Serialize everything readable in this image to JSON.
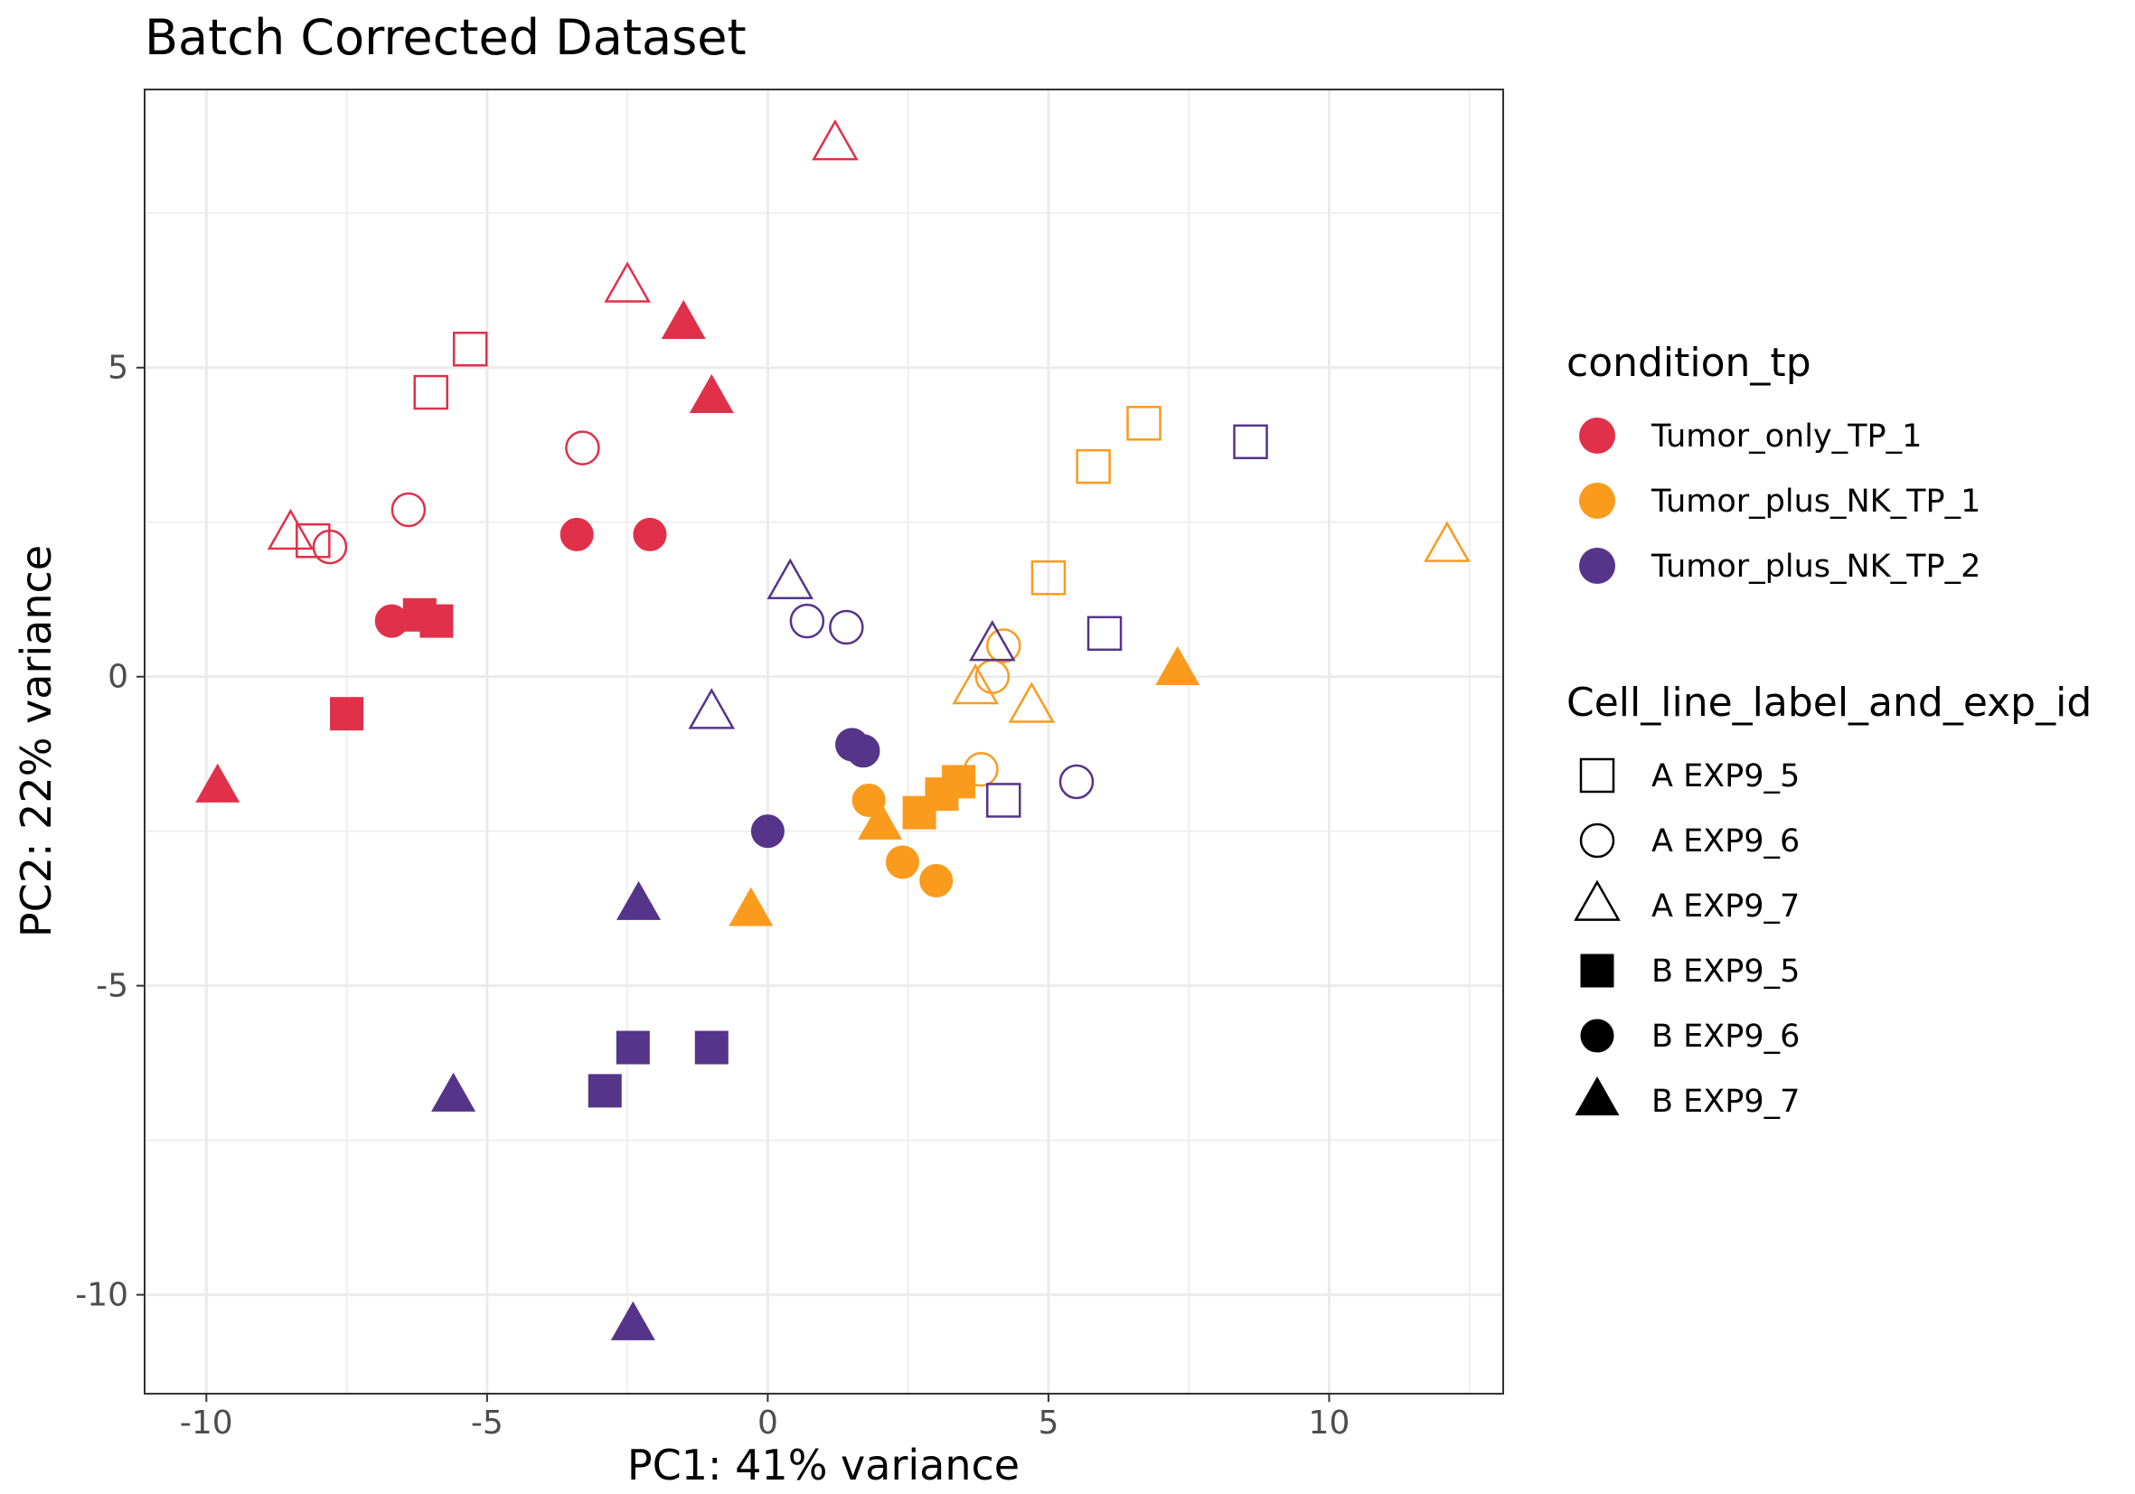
{
  "chart_data": {
    "type": "scatter",
    "title": "Batch Corrected Dataset",
    "xlabel": "PC1: 41% variance",
    "ylabel": "PC2: 22% variance",
    "xlim": [
      -11.1,
      13.1
    ],
    "ylim": [
      -11.6,
      9.5
    ],
    "xticks": [
      -10,
      -5,
      0,
      5,
      10
    ],
    "xtick_labels": [
      "-10",
      "-5",
      "0",
      "5",
      "10"
    ],
    "yticks": [
      -10,
      -5,
      0,
      5
    ],
    "ytick_labels": [
      "-10",
      "-5",
      "0",
      "5"
    ],
    "grid": true,
    "legend_placement": "right",
    "color_legend": {
      "title": "condition_tp",
      "entries": [
        {
          "key": "tumor_only",
          "label": "Tumor_only_TP_1",
          "color": "#E0304A"
        },
        {
          "key": "tumor_nk1",
          "label": "Tumor_plus_NK_TP_1",
          "color": "#FA9B1E"
        },
        {
          "key": "tumor_nk2",
          "label": "Tumor_plus_NK_TP_2",
          "color": "#55348A"
        }
      ]
    },
    "shape_legend": {
      "title": "Cell_line_label_and_exp_id",
      "entries": [
        {
          "key": "A5",
          "label": "A EXP9_5",
          "shape": "square",
          "filled": false
        },
        {
          "key": "A6",
          "label": "A EXP9_6",
          "shape": "circle",
          "filled": false
        },
        {
          "key": "A7",
          "label": "A EXP9_7",
          "shape": "triangle",
          "filled": false
        },
        {
          "key": "B5",
          "label": "B EXP9_5",
          "shape": "square",
          "filled": true
        },
        {
          "key": "B6",
          "label": "B EXP9_6",
          "shape": "circle",
          "filled": true
        },
        {
          "key": "B7",
          "label": "B EXP9_7",
          "shape": "triangle",
          "filled": true
        }
      ]
    },
    "points": [
      {
        "x": 1.2,
        "y": 8.6,
        "condition": "tumor_only",
        "group": "A7"
      },
      {
        "x": -2.5,
        "y": 6.3,
        "condition": "tumor_only",
        "group": "A7"
      },
      {
        "x": -8.5,
        "y": 2.3,
        "condition": "tumor_only",
        "group": "A7"
      },
      {
        "x": -5.3,
        "y": 5.3,
        "condition": "tumor_only",
        "group": "A5"
      },
      {
        "x": -6.0,
        "y": 4.6,
        "condition": "tumor_only",
        "group": "A5"
      },
      {
        "x": -8.1,
        "y": 2.2,
        "condition": "tumor_only",
        "group": "A5"
      },
      {
        "x": -3.3,
        "y": 3.7,
        "condition": "tumor_only",
        "group": "A6"
      },
      {
        "x": -6.4,
        "y": 2.7,
        "condition": "tumor_only",
        "group": "A6"
      },
      {
        "x": -7.8,
        "y": 2.1,
        "condition": "tumor_only",
        "group": "A6"
      },
      {
        "x": -1.5,
        "y": 5.7,
        "condition": "tumor_only",
        "group": "B7"
      },
      {
        "x": -1.0,
        "y": 4.5,
        "condition": "tumor_only",
        "group": "B7"
      },
      {
        "x": -9.8,
        "y": -1.8,
        "condition": "tumor_only",
        "group": "B7"
      },
      {
        "x": -3.4,
        "y": 2.3,
        "condition": "tumor_only",
        "group": "B6"
      },
      {
        "x": -2.1,
        "y": 2.3,
        "condition": "tumor_only",
        "group": "B6"
      },
      {
        "x": -6.7,
        "y": 0.9,
        "condition": "tumor_only",
        "group": "B6"
      },
      {
        "x": -6.2,
        "y": 1.0,
        "condition": "tumor_only",
        "group": "B5"
      },
      {
        "x": -5.9,
        "y": 0.9,
        "condition": "tumor_only",
        "group": "B5"
      },
      {
        "x": -7.5,
        "y": -0.6,
        "condition": "tumor_only",
        "group": "B5"
      },
      {
        "x": 6.7,
        "y": 4.1,
        "condition": "tumor_nk1",
        "group": "A5"
      },
      {
        "x": 5.8,
        "y": 3.4,
        "condition": "tumor_nk1",
        "group": "A5"
      },
      {
        "x": 5.0,
        "y": 1.6,
        "condition": "tumor_nk1",
        "group": "A5"
      },
      {
        "x": 12.1,
        "y": 2.1,
        "condition": "tumor_nk1",
        "group": "A7"
      },
      {
        "x": 3.7,
        "y": -0.2,
        "condition": "tumor_nk1",
        "group": "A7"
      },
      {
        "x": 4.7,
        "y": -0.5,
        "condition": "tumor_nk1",
        "group": "A7"
      },
      {
        "x": 4.2,
        "y": 0.5,
        "condition": "tumor_nk1",
        "group": "A6"
      },
      {
        "x": 4.0,
        "y": 0.0,
        "condition": "tumor_nk1",
        "group": "A6"
      },
      {
        "x": 3.8,
        "y": -1.5,
        "condition": "tumor_nk1",
        "group": "A6"
      },
      {
        "x": 7.3,
        "y": 0.1,
        "condition": "tumor_nk1",
        "group": "B7"
      },
      {
        "x": 2.0,
        "y": -2.4,
        "condition": "tumor_nk1",
        "group": "B7"
      },
      {
        "x": -0.3,
        "y": -3.8,
        "condition": "tumor_nk1",
        "group": "B7"
      },
      {
        "x": 2.7,
        "y": -2.2,
        "condition": "tumor_nk1",
        "group": "B5"
      },
      {
        "x": 3.1,
        "y": -1.9,
        "condition": "tumor_nk1",
        "group": "B5"
      },
      {
        "x": 3.4,
        "y": -1.7,
        "condition": "tumor_nk1",
        "group": "B5"
      },
      {
        "x": 1.8,
        "y": -2.0,
        "condition": "tumor_nk1",
        "group": "B6"
      },
      {
        "x": 2.4,
        "y": -3.0,
        "condition": "tumor_nk1",
        "group": "B6"
      },
      {
        "x": 3.0,
        "y": -3.3,
        "condition": "tumor_nk1",
        "group": "B6"
      },
      {
        "x": 8.6,
        "y": 3.8,
        "condition": "tumor_nk2",
        "group": "A5"
      },
      {
        "x": 6.0,
        "y": 0.7,
        "condition": "tumor_nk2",
        "group": "A5"
      },
      {
        "x": 4.2,
        "y": -2.0,
        "condition": "tumor_nk2",
        "group": "A5"
      },
      {
        "x": 0.4,
        "y": 1.5,
        "condition": "tumor_nk2",
        "group": "A7"
      },
      {
        "x": 4.0,
        "y": 0.5,
        "condition": "tumor_nk2",
        "group": "A7"
      },
      {
        "x": -1.0,
        "y": -0.6,
        "condition": "tumor_nk2",
        "group": "A7"
      },
      {
        "x": 0.7,
        "y": 0.9,
        "condition": "tumor_nk2",
        "group": "A6"
      },
      {
        "x": 1.4,
        "y": 0.8,
        "condition": "tumor_nk2",
        "group": "A6"
      },
      {
        "x": 5.5,
        "y": -1.7,
        "condition": "tumor_nk2",
        "group": "A6"
      },
      {
        "x": 1.5,
        "y": -1.1,
        "condition": "tumor_nk2",
        "group": "B6"
      },
      {
        "x": 1.7,
        "y": -1.2,
        "condition": "tumor_nk2",
        "group": "B6"
      },
      {
        "x": 0.0,
        "y": -2.5,
        "condition": "tumor_nk2",
        "group": "B6"
      },
      {
        "x": -2.3,
        "y": -3.7,
        "condition": "tumor_nk2",
        "group": "B7"
      },
      {
        "x": -5.6,
        "y": -6.8,
        "condition": "tumor_nk2",
        "group": "B7"
      },
      {
        "x": -2.4,
        "y": -10.5,
        "condition": "tumor_nk2",
        "group": "B7"
      },
      {
        "x": -2.4,
        "y": -6.0,
        "condition": "tumor_nk2",
        "group": "B5"
      },
      {
        "x": -1.0,
        "y": -6.0,
        "condition": "tumor_nk2",
        "group": "B5"
      },
      {
        "x": -2.9,
        "y": -6.7,
        "condition": "tumor_nk2",
        "group": "B5"
      }
    ]
  }
}
